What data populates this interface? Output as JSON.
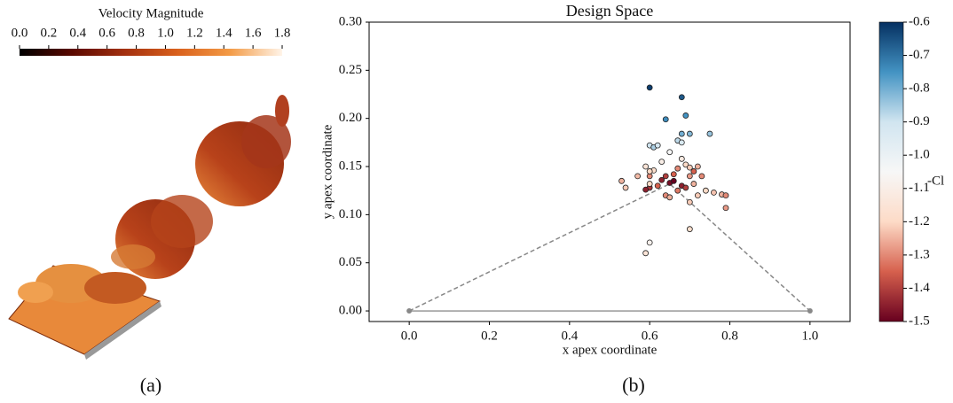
{
  "chart_data": [
    {
      "type": "colorbar",
      "title": "Velocity Magnitude",
      "xlim": [
        0,
        1.8
      ],
      "xticks": [
        {
          "value": 0,
          "label": "0.0"
        },
        0.2,
        0.4,
        0.6,
        0.8,
        {
          "value": 1,
          "label": "1.0"
        },
        1.2,
        1.4,
        1.6,
        1.8
      ],
      "colormap": [
        "#000000",
        "#5a0800",
        "#a3300f",
        "#d9601c",
        "#f39a45",
        "#fff4e8"
      ],
      "caption": "(a)"
    },
    {
      "type": "scatter",
      "title": "Design Space",
      "x_label": "x apex coordinate",
      "y_label": "y apex coordinate",
      "colorbar_label": "-Cl",
      "xlim": [
        -0.1,
        1.1
      ],
      "ylim": [
        -0.011,
        0.3
      ],
      "xticks": [
        {
          "value": 0,
          "label": "0.0"
        },
        0.2,
        0.4,
        0.6,
        0.8,
        {
          "value": 1,
          "label": "1.0"
        }
      ],
      "yticks": [
        {
          "value": 0,
          "label": "0.00"
        },
        0.05,
        {
          "value": 0.1,
          "label": "0.10"
        },
        0.15,
        {
          "value": 0.2,
          "label": "0.20"
        },
        0.25,
        {
          "value": 0.3,
          "label": "0.30"
        }
      ],
      "clim": [
        -1.5,
        -0.6
      ],
      "cticks": [
        -1.5,
        -1.4,
        -1.3,
        -1.2,
        -1.1,
        {
          "value": -1,
          "label": "-1.0"
        },
        -0.9,
        -0.8,
        -0.7,
        -0.6
      ],
      "colormap": [
        "#67001f",
        "#d6604d",
        "#fddbc7",
        "#f7f7f7",
        "#d1e5f0",
        "#4393c3",
        "#053061"
      ],
      "triangle": {
        "x": [
          0,
          0.65,
          1
        ],
        "y": [
          0,
          0.132,
          0
        ]
      },
      "x": [
        0.6,
        0.68,
        0.64,
        0.69,
        0.68,
        0.7,
        0.75,
        0.67,
        0.6,
        0.61,
        0.62,
        0.68,
        0.65,
        0.59,
        0.61,
        0.63,
        0.68,
        0.69,
        0.7,
        0.72,
        0.67,
        0.66,
        0.64,
        0.63,
        0.65,
        0.6,
        0.62,
        0.6,
        0.59,
        0.53,
        0.54,
        0.6,
        0.64,
        0.65,
        0.67,
        0.68,
        0.69,
        0.7,
        0.71,
        0.72,
        0.74,
        0.76,
        0.78,
        0.79,
        0.79,
        0.7,
        0.71,
        0.73,
        0.6,
        0.57,
        0.7,
        0.6,
        0.59,
        0.66
      ],
      "y": [
        0.232,
        0.222,
        0.199,
        0.203,
        0.184,
        0.184,
        0.184,
        0.177,
        0.172,
        0.17,
        0.172,
        0.175,
        0.165,
        0.15,
        0.146,
        0.155,
        0.158,
        0.152,
        0.149,
        0.15,
        0.148,
        0.142,
        0.14,
        0.136,
        0.133,
        0.14,
        0.13,
        0.128,
        0.126,
        0.135,
        0.128,
        0.132,
        0.12,
        0.118,
        0.125,
        0.13,
        0.128,
        0.14,
        0.132,
        0.12,
        0.125,
        0.123,
        0.121,
        0.12,
        0.107,
        0.113,
        0.145,
        0.14,
        0.145,
        0.14,
        0.085,
        0.071,
        0.06,
        0.135
      ],
      "values": [
        -0.62,
        -0.66,
        -0.74,
        -0.75,
        -0.8,
        -0.82,
        -0.84,
        -0.88,
        -0.9,
        -0.86,
        -0.92,
        -0.93,
        -1.05,
        -1.15,
        -1.18,
        -1.1,
        -1.12,
        -1.2,
        -1.22,
        -1.25,
        -1.3,
        -1.35,
        -1.4,
        -1.45,
        -1.48,
        -1.3,
        -1.35,
        -1.42,
        -1.45,
        -1.25,
        -1.22,
        -1.2,
        -1.3,
        -1.25,
        -1.32,
        -1.45,
        -1.4,
        -1.28,
        -1.25,
        -1.22,
        -1.2,
        -1.23,
        -1.25,
        -1.3,
        -1.28,
        -1.22,
        -1.35,
        -1.3,
        -1.2,
        -1.24,
        -1.18,
        -1.08,
        -1.15,
        -1.5
      ],
      "caption": "(b)"
    }
  ]
}
